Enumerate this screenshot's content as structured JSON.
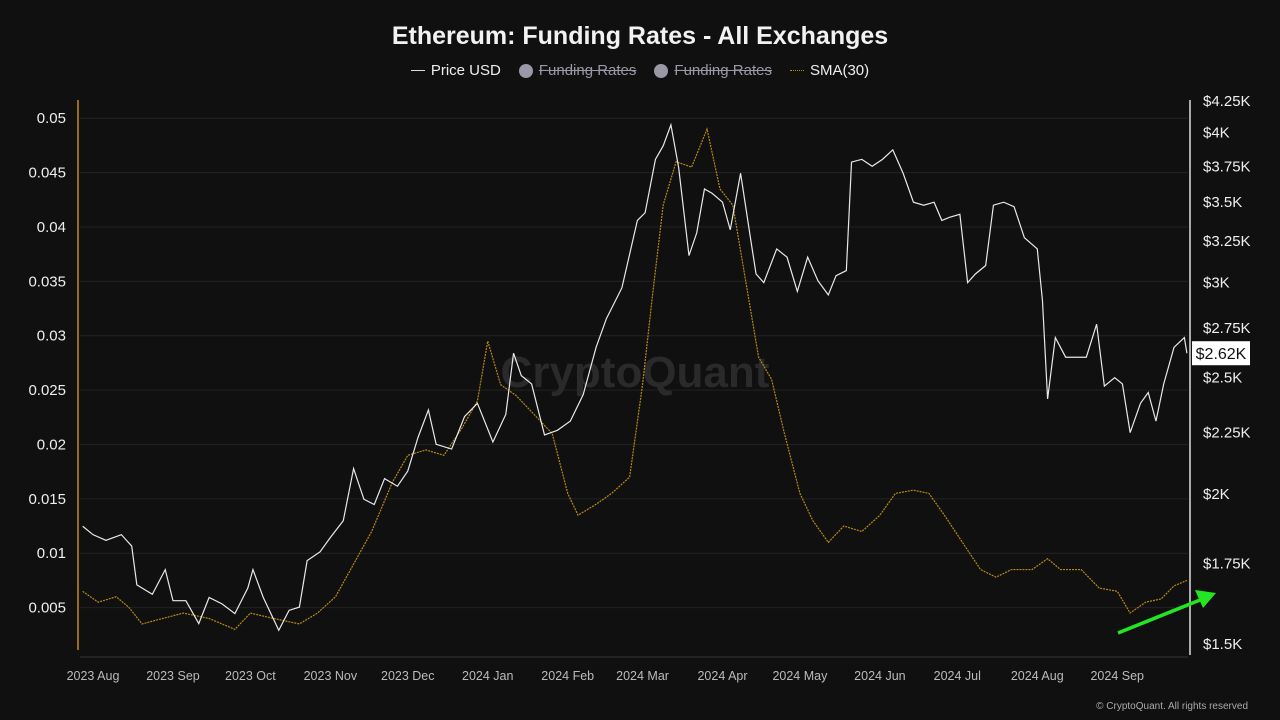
{
  "chart_data": {
    "type": "line",
    "title": "Ethereum: Funding Rates - All Exchanges",
    "legend": [
      {
        "label": "Price USD",
        "visible": true,
        "color": "#e8e8e8"
      },
      {
        "label": "Funding Rates",
        "visible": false,
        "color": "#9a98a6"
      },
      {
        "label": "Funding Rates",
        "visible": false,
        "color": "#9a98a6"
      },
      {
        "label": "SMA(30)",
        "visible": true,
        "color": "#b8891a"
      }
    ],
    "legend_placement": "top-center",
    "grid": true,
    "x_ticks": [
      "2023 Aug",
      "2023 Sep",
      "2023 Oct",
      "2023 Nov",
      "2023 Dec",
      "2024 Jan",
      "2024 Feb",
      "2024 Mar",
      "2024 Apr",
      "2024 May",
      "2024 Jun",
      "2024 Jul",
      "2024 Aug",
      "2024 Sep"
    ],
    "x_tick_dates": [
      "2023-08-01",
      "2023-09-01",
      "2023-10-01",
      "2023-11-01",
      "2023-12-01",
      "2024-01-01",
      "2024-02-01",
      "2024-03-01",
      "2024-04-01",
      "2024-05-01",
      "2024-06-01",
      "2024-07-01",
      "2024-08-01",
      "2024-09-01"
    ],
    "y_left": {
      "ticks": [
        "0.005",
        "0.01",
        "0.015",
        "0.02",
        "0.025",
        "0.03",
        "0.035",
        "0.04",
        "0.045",
        "0.05"
      ],
      "tick_values": [
        0.005,
        0.01,
        0.015,
        0.02,
        0.025,
        0.03,
        0.035,
        0.04,
        0.045,
        0.05
      ],
      "range": [
        0,
        0.0525
      ]
    },
    "y_right": {
      "scale": "log",
      "ticks": [
        "$1.5K",
        "$1.75K",
        "$2K",
        "$2.25K",
        "$2.5K",
        "$2.75K",
        "$3K",
        "$3.25K",
        "$3.5K",
        "$3.75K",
        "$4K",
        "$4.25K"
      ],
      "tick_values": [
        1500,
        1750,
        2000,
        2250,
        2500,
        2750,
        3000,
        3250,
        3500,
        3750,
        4000,
        4250
      ],
      "range": [
        1500,
        4250
      ]
    },
    "current_price_label": "$2.62K",
    "series": [
      {
        "name": "Price USD",
        "axis": "right",
        "points": [
          [
            "2023-07-28",
            1880
          ],
          [
            "2023-08-01",
            1850
          ],
          [
            "2023-08-06",
            1830
          ],
          [
            "2023-08-12",
            1850
          ],
          [
            "2023-08-16",
            1810
          ],
          [
            "2023-08-18",
            1680
          ],
          [
            "2023-08-24",
            1650
          ],
          [
            "2023-08-29",
            1730
          ],
          [
            "2023-09-01",
            1630
          ],
          [
            "2023-09-06",
            1630
          ],
          [
            "2023-09-11",
            1560
          ],
          [
            "2023-09-15",
            1640
          ],
          [
            "2023-09-20",
            1620
          ],
          [
            "2023-09-25",
            1590
          ],
          [
            "2023-09-30",
            1670
          ],
          [
            "2023-10-02",
            1730
          ],
          [
            "2023-10-06",
            1640
          ],
          [
            "2023-10-12",
            1540
          ],
          [
            "2023-10-16",
            1600
          ],
          [
            "2023-10-20",
            1610
          ],
          [
            "2023-10-23",
            1760
          ],
          [
            "2023-10-28",
            1790
          ],
          [
            "2023-11-01",
            1840
          ],
          [
            "2023-11-06",
            1900
          ],
          [
            "2023-11-10",
            2100
          ],
          [
            "2023-11-14",
            1980
          ],
          [
            "2023-11-18",
            1960
          ],
          [
            "2023-11-22",
            2060
          ],
          [
            "2023-11-27",
            2030
          ],
          [
            "2023-12-01",
            2090
          ],
          [
            "2023-12-05",
            2230
          ],
          [
            "2023-12-09",
            2350
          ],
          [
            "2023-12-12",
            2200
          ],
          [
            "2023-12-18",
            2180
          ],
          [
            "2023-12-23",
            2320
          ],
          [
            "2023-12-28",
            2380
          ],
          [
            "2024-01-03",
            2210
          ],
          [
            "2024-01-08",
            2330
          ],
          [
            "2024-01-11",
            2620
          ],
          [
            "2024-01-14",
            2510
          ],
          [
            "2024-01-18",
            2470
          ],
          [
            "2024-01-23",
            2240
          ],
          [
            "2024-01-28",
            2260
          ],
          [
            "2024-02-02",
            2300
          ],
          [
            "2024-02-07",
            2420
          ],
          [
            "2024-02-12",
            2650
          ],
          [
            "2024-02-16",
            2800
          ],
          [
            "2024-02-22",
            2970
          ],
          [
            "2024-02-28",
            3380
          ],
          [
            "2024-03-02",
            3430
          ],
          [
            "2024-03-06",
            3800
          ],
          [
            "2024-03-09",
            3900
          ],
          [
            "2024-03-12",
            4060
          ],
          [
            "2024-03-15",
            3740
          ],
          [
            "2024-03-19",
            3160
          ],
          [
            "2024-03-22",
            3300
          ],
          [
            "2024-03-25",
            3590
          ],
          [
            "2024-03-28",
            3560
          ],
          [
            "2024-04-01",
            3500
          ],
          [
            "2024-04-04",
            3320
          ],
          [
            "2024-04-08",
            3700
          ],
          [
            "2024-04-12",
            3250
          ],
          [
            "2024-04-14",
            3050
          ],
          [
            "2024-04-17",
            3000
          ],
          [
            "2024-04-22",
            3200
          ],
          [
            "2024-04-26",
            3150
          ],
          [
            "2024-04-30",
            2950
          ],
          [
            "2024-05-04",
            3150
          ],
          [
            "2024-05-08",
            3010
          ],
          [
            "2024-05-12",
            2930
          ],
          [
            "2024-05-15",
            3040
          ],
          [
            "2024-05-19",
            3070
          ],
          [
            "2024-05-21",
            3780
          ],
          [
            "2024-05-25",
            3800
          ],
          [
            "2024-05-29",
            3750
          ],
          [
            "2024-06-02",
            3800
          ],
          [
            "2024-06-06",
            3870
          ],
          [
            "2024-06-10",
            3700
          ],
          [
            "2024-06-14",
            3500
          ],
          [
            "2024-06-18",
            3480
          ],
          [
            "2024-06-22",
            3500
          ],
          [
            "2024-06-25",
            3380
          ],
          [
            "2024-06-28",
            3400
          ],
          [
            "2024-07-02",
            3420
          ],
          [
            "2024-07-05",
            3000
          ],
          [
            "2024-07-08",
            3050
          ],
          [
            "2024-07-12",
            3100
          ],
          [
            "2024-07-15",
            3480
          ],
          [
            "2024-07-19",
            3500
          ],
          [
            "2024-07-23",
            3470
          ],
          [
            "2024-07-27",
            3270
          ],
          [
            "2024-08-01",
            3200
          ],
          [
            "2024-08-03",
            2900
          ],
          [
            "2024-08-05",
            2400
          ],
          [
            "2024-08-08",
            2700
          ],
          [
            "2024-08-12",
            2600
          ],
          [
            "2024-08-16",
            2600
          ],
          [
            "2024-08-20",
            2600
          ],
          [
            "2024-08-24",
            2770
          ],
          [
            "2024-08-27",
            2460
          ],
          [
            "2024-08-31",
            2500
          ],
          [
            "2024-09-03",
            2470
          ],
          [
            "2024-09-06",
            2250
          ],
          [
            "2024-09-10",
            2380
          ],
          [
            "2024-09-13",
            2430
          ],
          [
            "2024-09-16",
            2300
          ],
          [
            "2024-09-19",
            2470
          ],
          [
            "2024-09-23",
            2650
          ],
          [
            "2024-09-27",
            2700
          ],
          [
            "2024-09-28",
            2620
          ]
        ]
      },
      {
        "name": "SMA(30)",
        "axis": "left",
        "points": [
          [
            "2023-07-28",
            0.0065
          ],
          [
            "2023-08-03",
            0.0055
          ],
          [
            "2023-08-10",
            0.006
          ],
          [
            "2023-08-15",
            0.005
          ],
          [
            "2023-08-20",
            0.0035
          ],
          [
            "2023-08-28",
            0.004
          ],
          [
            "2023-09-05",
            0.0045
          ],
          [
            "2023-09-15",
            0.004
          ],
          [
            "2023-09-25",
            0.003
          ],
          [
            "2023-10-01",
            0.0045
          ],
          [
            "2023-10-10",
            0.004
          ],
          [
            "2023-10-20",
            0.0035
          ],
          [
            "2023-10-27",
            0.0045
          ],
          [
            "2023-11-03",
            0.006
          ],
          [
            "2023-11-10",
            0.009
          ],
          [
            "2023-11-17",
            0.012
          ],
          [
            "2023-11-25",
            0.0165
          ],
          [
            "2023-12-01",
            0.019
          ],
          [
            "2023-12-08",
            0.0195
          ],
          [
            "2023-12-15",
            0.019
          ],
          [
            "2023-12-22",
            0.0215
          ],
          [
            "2023-12-28",
            0.024
          ],
          [
            "2024-01-01",
            0.0295
          ],
          [
            "2024-01-06",
            0.0255
          ],
          [
            "2024-01-12",
            0.0245
          ],
          [
            "2024-01-18",
            0.023
          ],
          [
            "2024-01-26",
            0.021
          ],
          [
            "2024-02-01",
            0.0155
          ],
          [
            "2024-02-05",
            0.0135
          ],
          [
            "2024-02-12",
            0.0145
          ],
          [
            "2024-02-18",
            0.0155
          ],
          [
            "2024-02-25",
            0.017
          ],
          [
            "2024-03-01",
            0.0255
          ],
          [
            "2024-03-05",
            0.034
          ],
          [
            "2024-03-09",
            0.042
          ],
          [
            "2024-03-14",
            0.046
          ],
          [
            "2024-03-20",
            0.0455
          ],
          [
            "2024-03-26",
            0.049
          ],
          [
            "2024-03-31",
            0.0435
          ],
          [
            "2024-04-05",
            0.042
          ],
          [
            "2024-04-10",
            0.035
          ],
          [
            "2024-04-15",
            0.028
          ],
          [
            "2024-04-20",
            0.026
          ],
          [
            "2024-04-25",
            0.021
          ],
          [
            "2024-05-01",
            0.0155
          ],
          [
            "2024-05-06",
            0.013
          ],
          [
            "2024-05-12",
            0.011
          ],
          [
            "2024-05-18",
            0.0125
          ],
          [
            "2024-05-25",
            0.012
          ],
          [
            "2024-06-01",
            0.0135
          ],
          [
            "2024-06-07",
            0.0155
          ],
          [
            "2024-06-14",
            0.0158
          ],
          [
            "2024-06-20",
            0.0155
          ],
          [
            "2024-06-26",
            0.0135
          ],
          [
            "2024-07-03",
            0.011
          ],
          [
            "2024-07-10",
            0.0085
          ],
          [
            "2024-07-16",
            0.0078
          ],
          [
            "2024-07-22",
            0.0085
          ],
          [
            "2024-07-30",
            0.0085
          ],
          [
            "2024-08-05",
            0.0095
          ],
          [
            "2024-08-10",
            0.0085
          ],
          [
            "2024-08-18",
            0.0085
          ],
          [
            "2024-08-25",
            0.0068
          ],
          [
            "2024-09-01",
            0.0065
          ],
          [
            "2024-09-06",
            0.0045
          ],
          [
            "2024-09-12",
            0.0055
          ],
          [
            "2024-09-18",
            0.0058
          ],
          [
            "2024-09-23",
            0.007
          ],
          [
            "2024-09-28",
            0.0075
          ]
        ]
      }
    ],
    "annotation": "green arrow pointing up-right at latest SMA(30) value"
  },
  "watermark": "CryptoQuant",
  "copyright": "© CryptoQuant. All rights reserved",
  "colors": {
    "background": "#101010",
    "price": "#e8e8e8",
    "sma": "#b8891a",
    "left_axis": "#c8891a",
    "arrow": "#22e622"
  }
}
